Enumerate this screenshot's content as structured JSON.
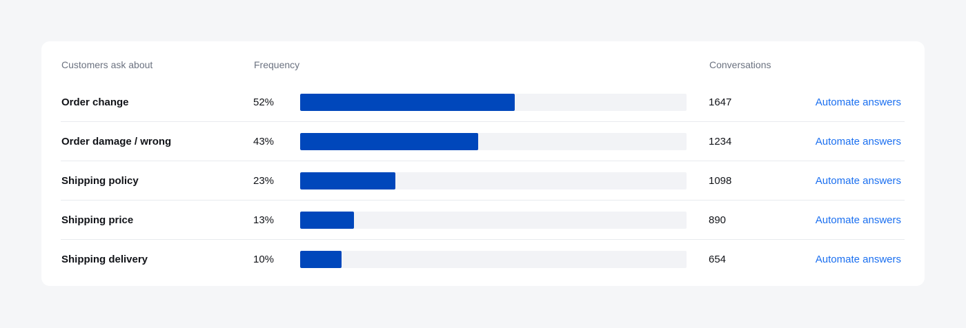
{
  "table": {
    "headers": {
      "topic": "Customers ask about",
      "frequency": "Frequency",
      "conversations": "Conversations"
    },
    "rows": [
      {
        "topic": "Order change",
        "frequency_label": "52%",
        "frequency": 52,
        "conversations": "1647",
        "action": "Automate answers"
      },
      {
        "topic": "Order damage / wrong",
        "frequency_label": "43%",
        "frequency": 43,
        "conversations": "1234",
        "action": "Automate answers"
      },
      {
        "topic": "Shipping policy",
        "frequency_label": "23%",
        "frequency": 23,
        "conversations": "1098",
        "action": "Automate answers"
      },
      {
        "topic": "Shipping price",
        "frequency_label": "13%",
        "frequency": 13,
        "conversations": "890",
        "action": "Automate answers"
      },
      {
        "topic": "Shipping delivery",
        "frequency_label": "10%",
        "frequency": 10,
        "conversations": "654",
        "action": "Automate answers"
      }
    ],
    "bar_scale_max": 93.5
  },
  "colors": {
    "background": "#f5f6f8",
    "card": "#ffffff",
    "bar_fill": "#0047bb",
    "bar_track": "#f2f3f6",
    "link": "#1a6ff0",
    "header_text": "#6b7280",
    "body_text": "#111318"
  }
}
